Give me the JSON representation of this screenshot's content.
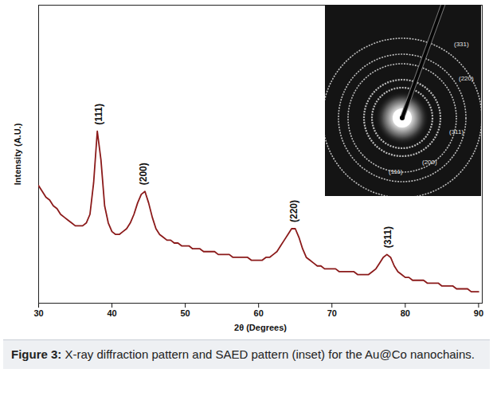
{
  "chart_data": {
    "type": "line",
    "xlabel": "2θ (Degrees)",
    "ylabel": "Intensity (A.U.)",
    "x": [
      30,
      30.5,
      31,
      31.5,
      32,
      32.5,
      33,
      33.5,
      34,
      34.5,
      35,
      35.5,
      36,
      36.5,
      37,
      37.5,
      38,
      38.5,
      39,
      39.5,
      40,
      40.5,
      41,
      41.5,
      42,
      42.5,
      43,
      43.5,
      44,
      44.5,
      45,
      45.5,
      46,
      46.5,
      47,
      47.5,
      48,
      48.5,
      49,
      49.5,
      50,
      50.5,
      51,
      51.5,
      52,
      52.5,
      53,
      53.5,
      54,
      54.5,
      55,
      55.5,
      56,
      56.5,
      57,
      57.5,
      58,
      58.5,
      59,
      59.5,
      60,
      60.5,
      61,
      61.5,
      62,
      62.5,
      63,
      63.5,
      64,
      64.5,
      65,
      65.5,
      66,
      66.5,
      67,
      67.5,
      68,
      68.5,
      69,
      69.5,
      70,
      70.5,
      71,
      71.5,
      72,
      72.5,
      73,
      73.5,
      74,
      74.5,
      75,
      75.5,
      76,
      76.5,
      77,
      77.5,
      78,
      78.5,
      79,
      79.5,
      80,
      80.5,
      81,
      81.5,
      82,
      82.5,
      83,
      83.5,
      84,
      84.5,
      85,
      85.5,
      86,
      86.5,
      87,
      87.5,
      88,
      88.5,
      89,
      89.5,
      90
    ],
    "series": [
      {
        "name": "Au@Co nanochains",
        "color": "#8b1a1a",
        "values": [
          41,
          39,
          37,
          36,
          34,
          33,
          31,
          30,
          29,
          28,
          27,
          27,
          27,
          28,
          31,
          42,
          60,
          50,
          34,
          28,
          25,
          24,
          24,
          25,
          26,
          28,
          31,
          35,
          38,
          39,
          35,
          30,
          26,
          24,
          23,
          22,
          22,
          21,
          21,
          20,
          20,
          20,
          19,
          19,
          19,
          18,
          18,
          18,
          18,
          17,
          17,
          17,
          17,
          16,
          16,
          16,
          16,
          16,
          15,
          15,
          15,
          15,
          16,
          16,
          17,
          18,
          20,
          22,
          24,
          26,
          26,
          23,
          19,
          16,
          15,
          14,
          13,
          13,
          12,
          12,
          12,
          12,
          11,
          11,
          11,
          11,
          11,
          10,
          10,
          10,
          10,
          11,
          12,
          14,
          16,
          17,
          16,
          13,
          11,
          10,
          9,
          9,
          8,
          8,
          8,
          8,
          7,
          7,
          7,
          7,
          6,
          6,
          6,
          6,
          5,
          5,
          5,
          5,
          4,
          4,
          4
        ]
      }
    ],
    "xlim": [
      30,
      90.5
    ],
    "xticks": [
      30,
      40,
      50,
      60,
      70,
      80,
      90
    ],
    "ylim": [
      0,
      104
    ],
    "yticks": [],
    "tick_labels": "x",
    "grid": false,
    "annotations": [
      {
        "text": "(111)",
        "x": 38.2
      },
      {
        "text": "(200)",
        "x": 44.3
      },
      {
        "text": "(220)",
        "x": 64.8
      },
      {
        "text": "(311)",
        "x": 77.6
      }
    ],
    "inset": {
      "labels": [
        "(111)",
        "(200)",
        "(220)",
        "(311)",
        "(331)"
      ]
    },
    "caption": {
      "label": "Figure 3:",
      "text": "X-ray diffraction pattern and SAED pattern (inset) for the Au@Co nanochains."
    }
  }
}
